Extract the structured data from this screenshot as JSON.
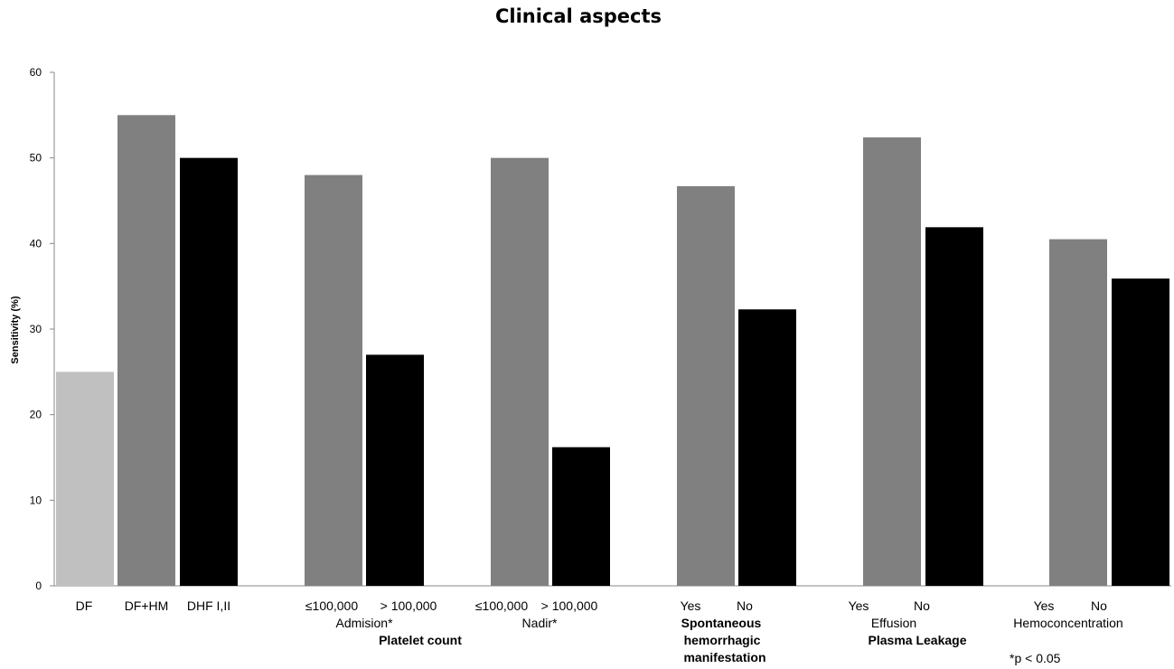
{
  "chart_data": {
    "type": "bar",
    "title": "Clinical aspects",
    "ylabel": "Sensitivity (%)",
    "xlabel": "",
    "ylim": [
      0,
      60
    ],
    "yticks": [
      0,
      10,
      20,
      30,
      40,
      50,
      60
    ],
    "grid": false,
    "colors": {
      "light": "#c0c0c0",
      "gray": "#808080",
      "black": "#000000"
    },
    "bars": [
      {
        "category": "DF",
        "value": 25,
        "color": "light"
      },
      {
        "category": "DF+HM",
        "value": 55,
        "color": "gray"
      },
      {
        "category": "DHF I,II",
        "value": 50,
        "color": "black"
      },
      {
        "category": "≤100,000",
        "value": 48,
        "color": "gray"
      },
      {
        "category": "> 100,000",
        "value": 27,
        "color": "black"
      },
      {
        "category": "≤100,000",
        "value": 50,
        "color": "gray"
      },
      {
        "category": "> 100,000",
        "value": 16.2,
        "color": "black"
      },
      {
        "category": "Yes",
        "value": 46.7,
        "color": "gray"
      },
      {
        "category": "No",
        "value": 32.3,
        "color": "black"
      },
      {
        "category": "Yes",
        "value": 52.4,
        "color": "gray"
      },
      {
        "category": "No",
        "value": 41.9,
        "color": "black"
      },
      {
        "category": "Yes",
        "value": 40.5,
        "color": "gray"
      },
      {
        "category": "No",
        "value": 35.9,
        "color": "black"
      }
    ],
    "group_labels": [
      {
        "text": "Admision*",
        "style": "sub"
      },
      {
        "text": "Platelet count",
        "style": "grp"
      },
      {
        "text": "Nadir*",
        "style": "sub"
      },
      {
        "text": "Spontaneous",
        "style": "grp"
      },
      {
        "text": "hemorrhagic",
        "style": "grp"
      },
      {
        "text": "manifestation",
        "style": "grp"
      },
      {
        "text": "Effusion",
        "style": "sub"
      },
      {
        "text": "Plasma Leakage",
        "style": "grp"
      },
      {
        "text": "Hemoconcentration",
        "style": "sub"
      }
    ],
    "annotation": "*p < 0.05"
  }
}
